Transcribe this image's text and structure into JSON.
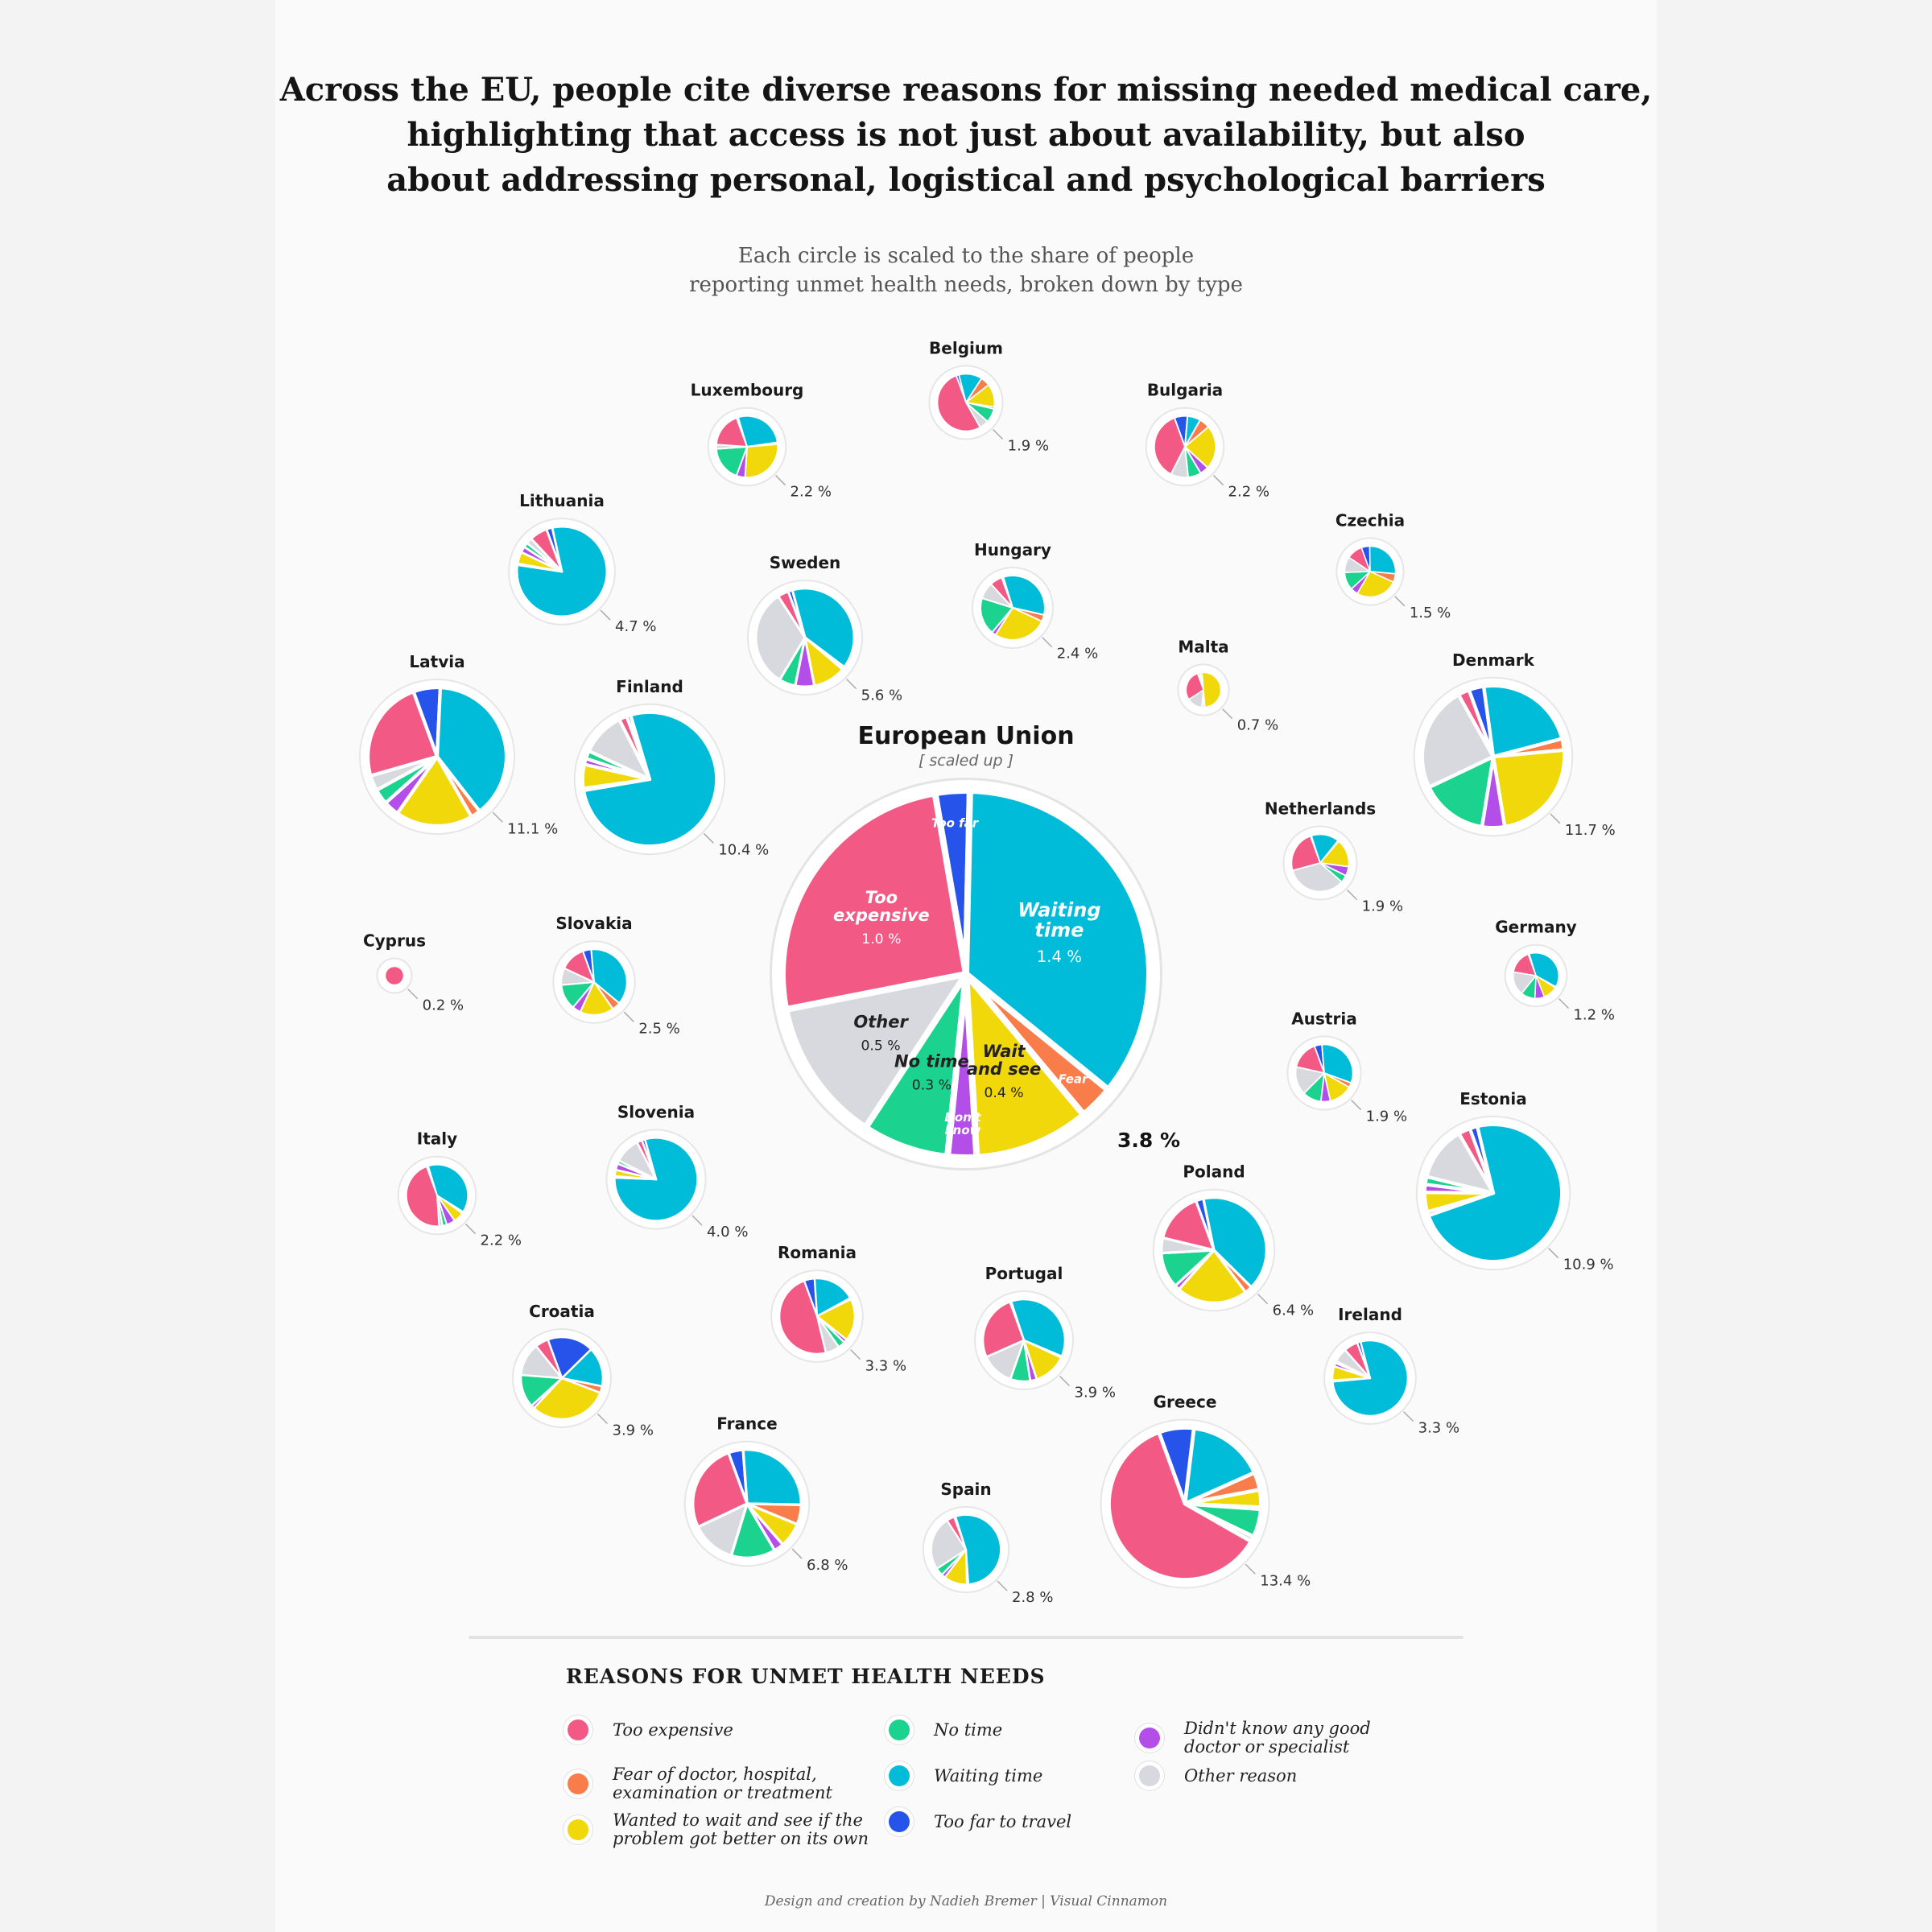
{
  "title_lines": [
    "Across the EU, people cite diverse reasons for missing needed medical care,",
    "highlighting that access is not just about availability, but also",
    "about addressing personal, logistical and psychological barriers"
  ],
  "subtitle_lines": [
    "Each circle is scaled to the share of people",
    "reporting unmet health needs, broken down by type"
  ],
  "legend": {
    "title": "REASONS FOR UNMET HEALTH NEEDS",
    "items": [
      {
        "key": "expensive",
        "label": "Too expensive"
      },
      {
        "key": "fear",
        "label": "Fear of doctor, hospital,\nexamination or treatment"
      },
      {
        "key": "wait_see",
        "label": "Wanted to wait and see if the\nproblem got better on its own"
      },
      {
        "key": "no_time",
        "label": "No time"
      },
      {
        "key": "waiting",
        "label": "Waiting time"
      },
      {
        "key": "too_far",
        "label": "Too far to travel"
      },
      {
        "key": "dont_know",
        "label": "Didn't know any good\ndoctor or specialist"
      },
      {
        "key": "other",
        "label": "Other reason"
      }
    ]
  },
  "credit": "Design and creation by Nadieh Bremer | Visual Cinnamon",
  "colors": {
    "expensive": "#f25a85",
    "fear": "#f97d4a",
    "wait_see": "#f1d80a",
    "no_time": "#1bd28f",
    "waiting": "#00bcd8",
    "too_far": "#2653ea",
    "dont_know": "#b44ee8",
    "other": "#d8d9de"
  },
  "chart_data": {
    "type": "pie",
    "encoding": "circle area scaled to total share of people reporting unmet health needs; slices by reason",
    "eu": {
      "title": "European Union",
      "subtitle": "[ scaled up ]",
      "total": 3.8,
      "total_label": "3.8 %",
      "slices": [
        {
          "key": "too_far",
          "label": "Too far",
          "value_label": "",
          "value": 0.12
        },
        {
          "key": "waiting",
          "label": "Waiting\ntime",
          "value_label": "1.4 %",
          "value": 1.4
        },
        {
          "key": "fear",
          "label": "Fear",
          "value_label": "",
          "value": 0.12
        },
        {
          "key": "wait_see",
          "label": "Wait\nand see",
          "value_label": "0.4 %",
          "value": 0.4
        },
        {
          "key": "dont_know",
          "label": "Don't\nknow",
          "value_label": "",
          "value": 0.1
        },
        {
          "key": "no_time",
          "label": "No time",
          "value_label": "0.3 %",
          "value": 0.3
        },
        {
          "key": "other",
          "label": "Other",
          "value_label": "0.5 %",
          "value": 0.5
        },
        {
          "key": "expensive",
          "label": "Too\nexpensive",
          "value_label": "1.0 %",
          "value": 1.0
        }
      ]
    },
    "countries": [
      {
        "name": "Belgium",
        "total": 1.9,
        "label": "1.9 %",
        "parts": {
          "too_far": 0.03,
          "waiting": 0.25,
          "fear": 0.1,
          "wait_see": 0.25,
          "dont_know": 0.02,
          "no_time": 0.15,
          "other": 0.1,
          "expensive": 1.0
        }
      },
      {
        "name": "Luxembourg",
        "total": 2.2,
        "label": "2.2 %",
        "parts": {
          "too_far": 0.02,
          "waiting": 0.6,
          "fear": 0.02,
          "wait_see": 0.6,
          "dont_know": 0.1,
          "no_time": 0.4,
          "other": 0.05,
          "expensive": 0.4
        }
      },
      {
        "name": "Bulgaria",
        "total": 2.2,
        "label": "2.2 %",
        "parts": {
          "too_far": 0.15,
          "waiting": 0.15,
          "fear": 0.12,
          "wait_see": 0.5,
          "dont_know": 0.1,
          "no_time": 0.15,
          "other": 0.2,
          "expensive": 0.8
        }
      },
      {
        "name": "Lithuania",
        "total": 4.7,
        "label": "4.7 %",
        "parts": {
          "too_far": 0.1,
          "waiting": 3.8,
          "fear": 0.02,
          "wait_see": 0.2,
          "dont_know": 0.1,
          "no_time": 0.08,
          "other": 0.1,
          "expensive": 0.3
        }
      },
      {
        "name": "Czechia",
        "total": 1.5,
        "label": "1.5 %",
        "parts": {
          "too_far": 0.08,
          "waiting": 0.4,
          "fear": 0.08,
          "wait_see": 0.4,
          "dont_know": 0.07,
          "no_time": 0.17,
          "other": 0.15,
          "expensive": 0.15
        }
      },
      {
        "name": "Hungary",
        "total": 2.4,
        "label": "2.4 %",
        "parts": {
          "too_far": 0.02,
          "waiting": 0.8,
          "fear": 0.08,
          "wait_see": 0.65,
          "dont_know": 0.05,
          "no_time": 0.45,
          "other": 0.2,
          "expensive": 0.15
        }
      },
      {
        "name": "Sweden",
        "total": 5.6,
        "label": "5.6 %",
        "parts": {
          "too_far": 0.08,
          "waiting": 2.2,
          "fear": 0.05,
          "wait_see": 0.6,
          "dont_know": 0.35,
          "no_time": 0.3,
          "other": 1.8,
          "expensive": 0.2
        }
      },
      {
        "name": "Malta",
        "total": 0.7,
        "label": "0.7 %",
        "parts": {
          "too_far": 0.01,
          "waiting": 0.01,
          "fear": 0.01,
          "wait_see": 0.35,
          "dont_know": 0.01,
          "no_time": 0.01,
          "other": 0.1,
          "expensive": 0.2
        }
      },
      {
        "name": "Latvia",
        "total": 11.1,
        "label": "11.1 %",
        "parts": {
          "too_far": 0.7,
          "waiting": 4.3,
          "fear": 0.25,
          "wait_see": 2.0,
          "dont_know": 0.4,
          "no_time": 0.4,
          "other": 0.4,
          "expensive": 2.65
        }
      },
      {
        "name": "Finland",
        "total": 10.4,
        "label": "10.4 %",
        "parts": {
          "too_far": 0.1,
          "waiting": 8.0,
          "fear": 0.05,
          "wait_see": 0.6,
          "dont_know": 0.15,
          "no_time": 0.2,
          "other": 1.1,
          "expensive": 0.2
        }
      },
      {
        "name": "Denmark",
        "total": 11.7,
        "label": "11.7 %",
        "parts": {
          "too_far": 0.4,
          "waiting": 2.7,
          "fear": 0.3,
          "wait_see": 2.8,
          "dont_know": 0.6,
          "no_time": 1.8,
          "other": 2.8,
          "expensive": 0.3
        }
      },
      {
        "name": "Netherlands",
        "total": 1.9,
        "label": "1.9 %",
        "parts": {
          "too_far": 0.01,
          "waiting": 0.3,
          "fear": 0.01,
          "wait_see": 0.3,
          "dont_know": 0.1,
          "no_time": 0.08,
          "other": 0.65,
          "expensive": 0.45
        }
      },
      {
        "name": "Cyprus",
        "total": 0.2,
        "label": "0.2 %",
        "parts": {
          "too_far": 0.0,
          "waiting": 0.0,
          "fear": 0.0,
          "wait_see": 0.0,
          "dont_know": 0.0,
          "no_time": 0.0,
          "other": 0.0,
          "expensive": 0.2
        }
      },
      {
        "name": "Slovakia",
        "total": 2.5,
        "label": "2.5 %",
        "parts": {
          "too_far": 0.1,
          "waiting": 0.9,
          "fear": 0.1,
          "wait_see": 0.4,
          "dont_know": 0.1,
          "no_time": 0.3,
          "other": 0.2,
          "expensive": 0.3
        }
      },
      {
        "name": "Germany",
        "total": 1.2,
        "label": "1.2 %",
        "parts": {
          "too_far": 0.01,
          "waiting": 0.45,
          "fear": 0.01,
          "wait_see": 0.12,
          "dont_know": 0.08,
          "no_time": 0.12,
          "other": 0.2,
          "expensive": 0.2
        }
      },
      {
        "name": "Austria",
        "total": 1.9,
        "label": "1.9 %",
        "parts": {
          "too_far": 0.08,
          "waiting": 0.6,
          "fear": 0.05,
          "wait_see": 0.25,
          "dont_know": 0.1,
          "no_time": 0.2,
          "other": 0.3,
          "expensive": 0.3
        }
      },
      {
        "name": "Italy",
        "total": 2.2,
        "label": "2.2 %",
        "parts": {
          "too_far": 0.02,
          "waiting": 0.85,
          "fear": 0.02,
          "wait_see": 0.12,
          "dont_know": 0.1,
          "no_time": 0.05,
          "other": 0.04,
          "expensive": 1.0
        }
      },
      {
        "name": "Slovenia",
        "total": 4.0,
        "label": "4.0 %",
        "parts": {
          "too_far": 0.05,
          "waiting": 3.2,
          "fear": 0.02,
          "wait_see": 0.1,
          "dont_know": 0.1,
          "no_time": 0.05,
          "other": 0.4,
          "expensive": 0.08
        }
      },
      {
        "name": "Estonia",
        "total": 10.9,
        "label": "10.9 %",
        "parts": {
          "too_far": 0.2,
          "waiting": 8.0,
          "fear": 0.1,
          "wait_see": 0.5,
          "dont_know": 0.2,
          "no_time": 0.2,
          "other": 1.4,
          "expensive": 0.3
        }
      },
      {
        "name": "Poland",
        "total": 6.4,
        "label": "6.4 %",
        "parts": {
          "too_far": 0.15,
          "waiting": 2.6,
          "fear": 0.15,
          "wait_see": 1.4,
          "dont_know": 0.1,
          "no_time": 0.7,
          "other": 0.3,
          "expensive": 1.0
        }
      },
      {
        "name": "Romania",
        "total": 3.3,
        "label": "3.3 %",
        "parts": {
          "too_far": 0.15,
          "waiting": 0.6,
          "fear": 0.02,
          "wait_see": 0.6,
          "dont_know": 0.05,
          "no_time": 0.1,
          "other": 0.2,
          "expensive": 1.6
        }
      },
      {
        "name": "Portugal",
        "total": 3.9,
        "label": "3.9 %",
        "parts": {
          "too_far": 0.02,
          "waiting": 1.4,
          "fear": 0.02,
          "wait_see": 0.5,
          "dont_know": 0.1,
          "no_time": 0.3,
          "other": 0.5,
          "expensive": 1.0
        }
      },
      {
        "name": "Croatia",
        "total": 3.9,
        "label": "3.9 %",
        "parts": {
          "too_far": 0.7,
          "waiting": 0.6,
          "fear": 0.1,
          "wait_see": 1.2,
          "dont_know": 0.05,
          "no_time": 0.5,
          "other": 0.5,
          "expensive": 0.2
        }
      },
      {
        "name": "Ireland",
        "total": 3.3,
        "label": "3.3 %",
        "parts": {
          "too_far": 0.05,
          "waiting": 2.6,
          "fear": 0.02,
          "wait_see": 0.2,
          "dont_know": 0.05,
          "no_time": 0.03,
          "other": 0.2,
          "expensive": 0.2
        }
      },
      {
        "name": "France",
        "total": 6.8,
        "label": "6.8 %",
        "parts": {
          "too_far": 0.3,
          "waiting": 1.8,
          "fear": 0.4,
          "wait_see": 0.5,
          "dont_know": 0.2,
          "no_time": 0.9,
          "other": 0.9,
          "expensive": 1.8
        }
      },
      {
        "name": "Spain",
        "total": 2.8,
        "label": "2.8 %",
        "parts": {
          "too_far": 0.02,
          "waiting": 1.5,
          "fear": 0.02,
          "wait_see": 0.3,
          "dont_know": 0.05,
          "no_time": 0.1,
          "other": 0.7,
          "expensive": 0.1
        }
      },
      {
        "name": "Greece",
        "total": 13.4,
        "label": "13.4 %",
        "parts": {
          "too_far": 1.0,
          "waiting": 2.2,
          "fear": 0.5,
          "wait_see": 0.5,
          "dont_know": 0.05,
          "no_time": 0.8,
          "other": 0.15,
          "expensive": 8.2
        }
      }
    ]
  }
}
